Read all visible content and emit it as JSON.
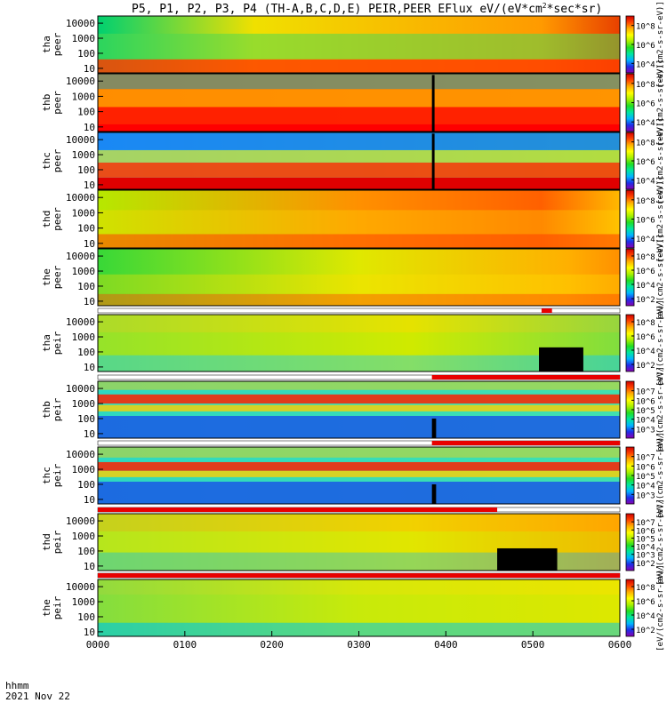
{
  "header": {
    "title": "P5, P1, P2, P3, P4 (TH-A,B,C,D,E) PEIR,PEER EFlux eV/(eV*cm",
    "title_sup": "2",
    "title_tail": "*sec*sr)"
  },
  "footer": {
    "time_format_label": "hhmm",
    "date_label": "2021 Nov 22"
  },
  "colorbar_unit_label": "[eV/(cm2-s-sr-eV)]",
  "chart_data": {
    "type": "heatmap",
    "title": "P5, P1, P2, P3, P4 (TH-A,B,C,D,E) PEIR,PEER EFlux eV/(eV*cm2*sec*sr)",
    "xlabel": "hhmm",
    "x_ticks": [
      "0000",
      "0100",
      "0200",
      "0300",
      "0400",
      "0500",
      "0600"
    ],
    "xlim": [
      "0000",
      "0600"
    ],
    "y_scale": "log",
    "ylim": [
      5,
      30000
    ],
    "colormap": "rainbow",
    "panels": [
      {
        "probe": "tha",
        "species": "peer",
        "ylabel": [
          "tha",
          "peer"
        ],
        "y_ticks": [
          "10000",
          "1000",
          "100",
          "10"
        ],
        "cbar_ticks": [
          "10^8",
          "10^6",
          "10^4"
        ],
        "cbar_range": [
          1000,
          1000000000
        ],
        "cbar_label": "[eV/(cm2-s-sr-eV)]"
      },
      {
        "probe": "thb",
        "species": "peer",
        "ylabel": [
          "thb",
          "peer"
        ],
        "y_ticks": [
          "10000",
          "1000",
          "100",
          "10"
        ],
        "cbar_ticks": [
          "10^8",
          "10^6",
          "10^4"
        ],
        "cbar_range": [
          1000,
          1000000000
        ],
        "cbar_label": "[eV/(cm2-s-sr-eV)]"
      },
      {
        "probe": "thc",
        "species": "peer",
        "ylabel": [
          "thc",
          "peer"
        ],
        "y_ticks": [
          "10000",
          "1000",
          "100",
          "10"
        ],
        "cbar_ticks": [
          "10^8",
          "10^6",
          "10^4"
        ],
        "cbar_range": [
          1000,
          1000000000
        ],
        "cbar_label": "[eV/(cm2-s-sr-eV)]"
      },
      {
        "probe": "thd",
        "species": "peer",
        "ylabel": [
          "thd",
          "peer"
        ],
        "y_ticks": [
          "10000",
          "1000",
          "100",
          "10"
        ],
        "cbar_ticks": [
          "10^8",
          "10^6",
          "10^4"
        ],
        "cbar_range": [
          1000,
          1000000000
        ],
        "cbar_label": "[eV/(cm2-s-sr-eV)]"
      },
      {
        "probe": "the",
        "species": "peer",
        "ylabel": [
          "the",
          "peer"
        ],
        "y_ticks": [
          "10000",
          "1000",
          "100",
          "10"
        ],
        "cbar_ticks": [
          "10^8",
          "10^6",
          "10^4",
          "10^2"
        ],
        "cbar_range": [
          10,
          1000000000
        ],
        "cbar_label": "[eV/(cm2-s-sr-eV)]"
      },
      {
        "probe": "tha",
        "species": "peir",
        "ylabel": [
          "tha",
          "peir"
        ],
        "y_ticks": [
          "10000",
          "1000",
          "100",
          "10"
        ],
        "cbar_ticks": [
          "10^8",
          "10^6",
          "10^4",
          "10^2"
        ],
        "cbar_range": [
          10,
          1000000000
        ],
        "cbar_label": "[eV/(cm2-s-sr-eV)]"
      },
      {
        "probe": "thb",
        "species": "peir",
        "ylabel": [
          "thb",
          "peir"
        ],
        "y_ticks": [
          "10000",
          "1000",
          "100",
          "10"
        ],
        "cbar_ticks": [
          "10^7",
          "10^6",
          "10^5",
          "10^4",
          "10^3"
        ],
        "cbar_range": [
          100,
          100000000
        ],
        "cbar_label": "[eV/(cm2-s-sr-eV)]"
      },
      {
        "probe": "thc",
        "species": "peir",
        "ylabel": [
          "thc",
          "peir"
        ],
        "y_ticks": [
          "10000",
          "1000",
          "100",
          "10"
        ],
        "cbar_ticks": [
          "10^7",
          "10^6",
          "10^5",
          "10^4",
          "10^3"
        ],
        "cbar_range": [
          100,
          100000000
        ],
        "cbar_label": "[eV/(cm2-s-sr-eV)]"
      },
      {
        "probe": "thd",
        "species": "peir",
        "ylabel": [
          "thd",
          "peir"
        ],
        "y_ticks": [
          "10000",
          "1000",
          "100",
          "10"
        ],
        "cbar_ticks": [
          "10^7",
          "10^6",
          "10^5",
          "10^4",
          "10^3",
          "10^2"
        ],
        "cbar_range": [
          10,
          100000000
        ],
        "cbar_label": "[eV/(cm2-s-sr-eV)]"
      },
      {
        "probe": "the",
        "species": "peir",
        "ylabel": [
          "the",
          "peir"
        ],
        "y_ticks": [
          "10000",
          "1000",
          "100",
          "10"
        ],
        "cbar_ticks": [
          "10^8",
          "10^6",
          "10^4",
          "10^2"
        ],
        "cbar_range": [
          10,
          1000000000
        ],
        "cbar_label": "[eV/(cm2-s-sr-eV)]"
      }
    ]
  }
}
